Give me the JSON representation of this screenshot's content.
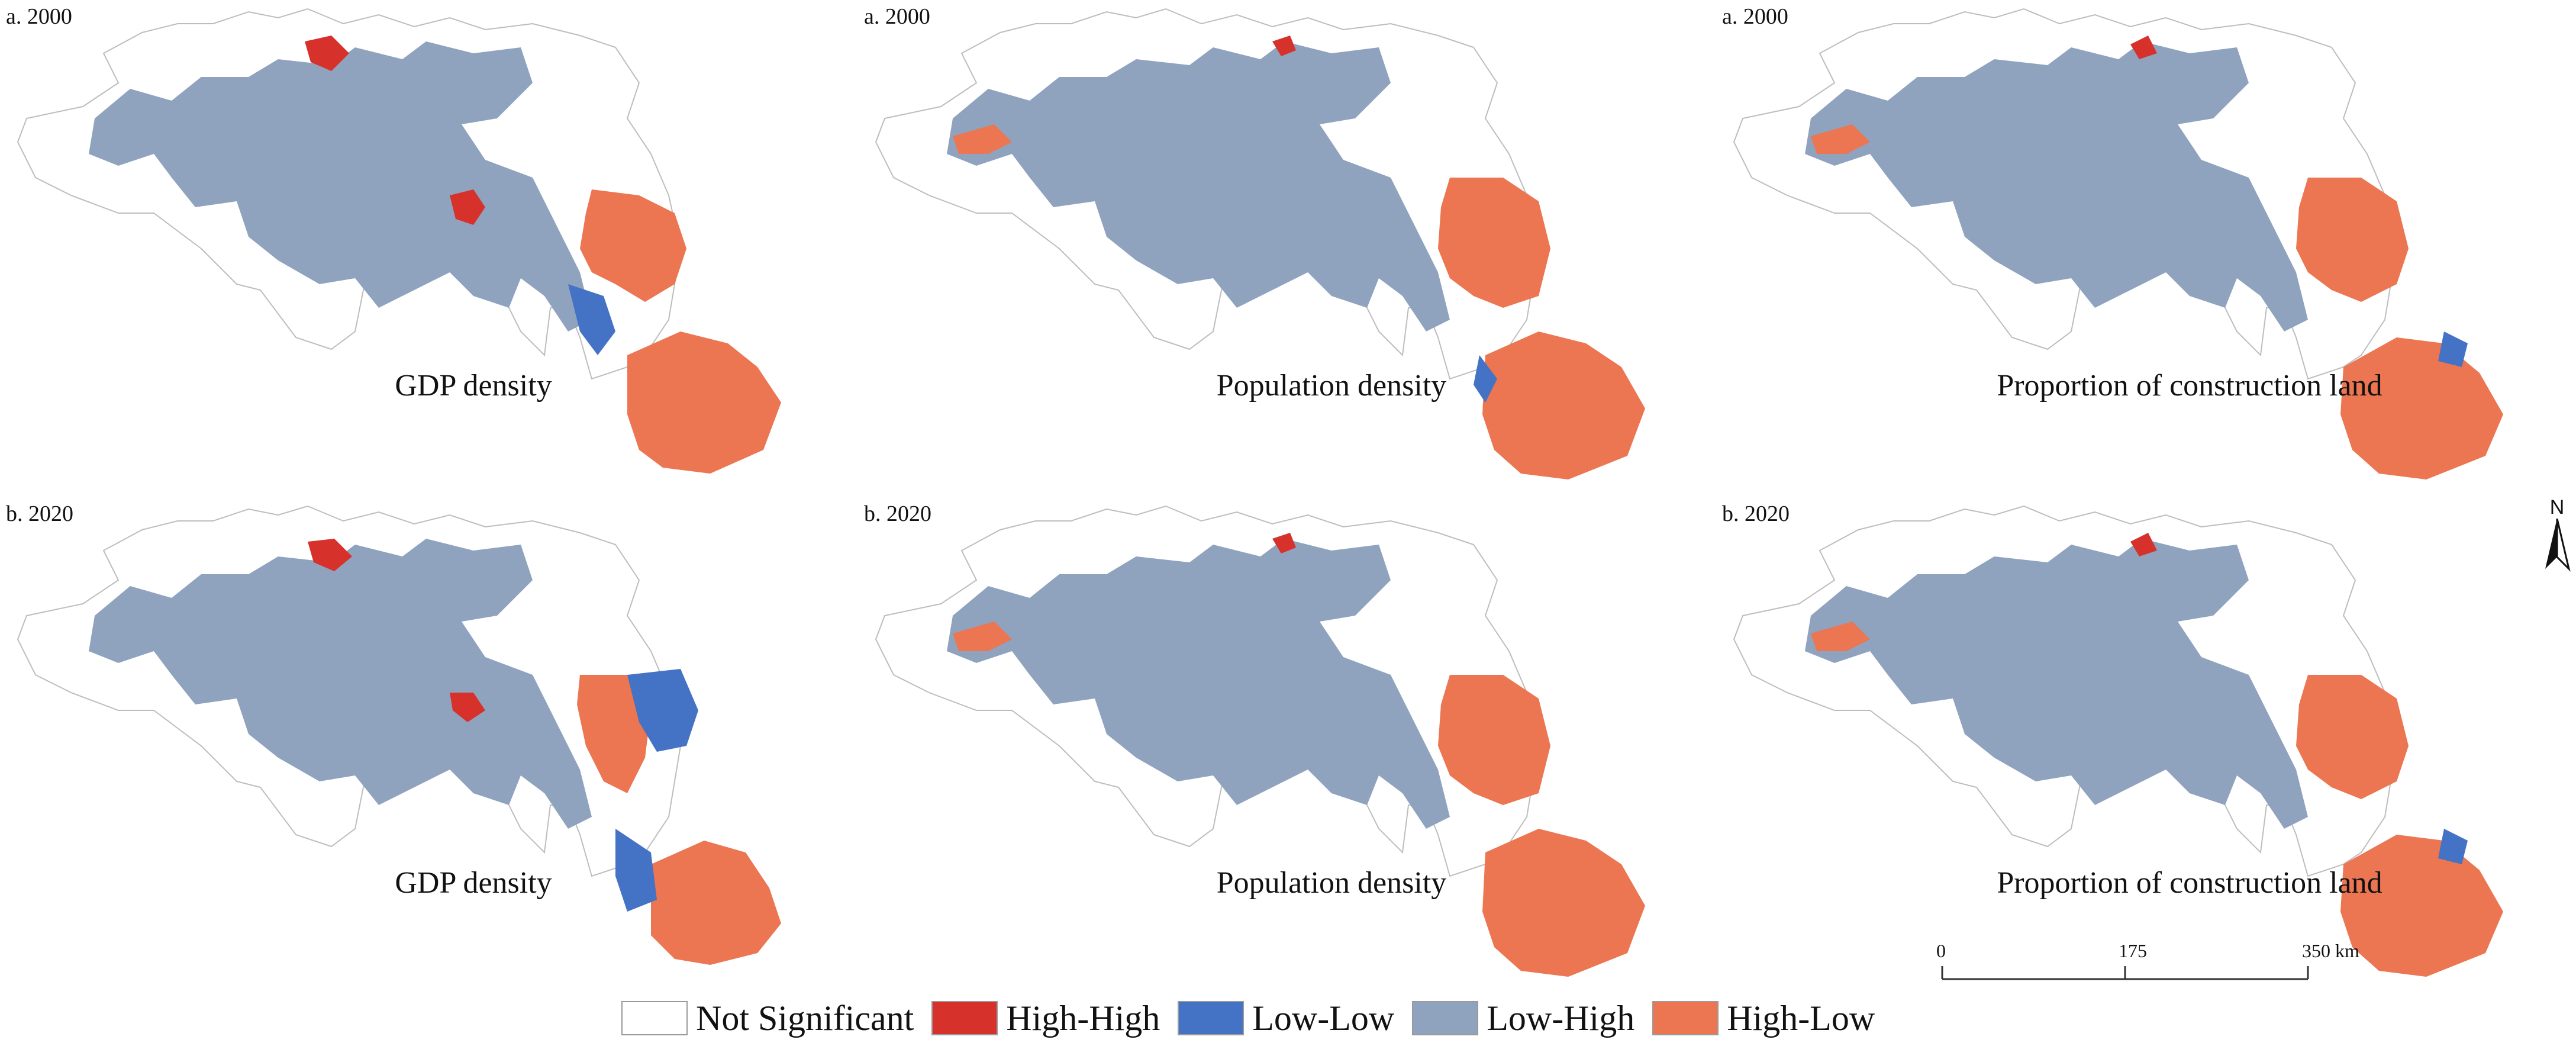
{
  "colors": {
    "not_significant": "#ffffff",
    "high_high": "#d7312c",
    "low_low": "#4472c4",
    "low_high": "#8fa3bf",
    "high_low": "#ec7552",
    "outline": "#bdbdbd"
  },
  "panels": [
    {
      "year_label": "a. 2000",
      "variable": "GDP density"
    },
    {
      "year_label": "a. 2000",
      "variable": "Population density"
    },
    {
      "year_label": "a. 2000",
      "variable": "Proportion of construction land"
    },
    {
      "year_label": "b. 2020",
      "variable": "GDP density"
    },
    {
      "year_label": "b. 2020",
      "variable": "Population density"
    },
    {
      "year_label": "b. 2020",
      "variable": "Proportion of construction land"
    }
  ],
  "legend": [
    {
      "label": "Not Significant",
      "color": "#ffffff"
    },
    {
      "label": "High-High",
      "color": "#d7312c"
    },
    {
      "label": "Low-Low",
      "color": "#4472c4"
    },
    {
      "label": "Low-High",
      "color": "#8fa3bf"
    },
    {
      "label": "High-Low",
      "color": "#ec7552"
    }
  ],
  "north_arrow": {
    "label": "N"
  },
  "scale_bar": {
    "ticks": [
      "0",
      "175",
      "350 km"
    ]
  }
}
